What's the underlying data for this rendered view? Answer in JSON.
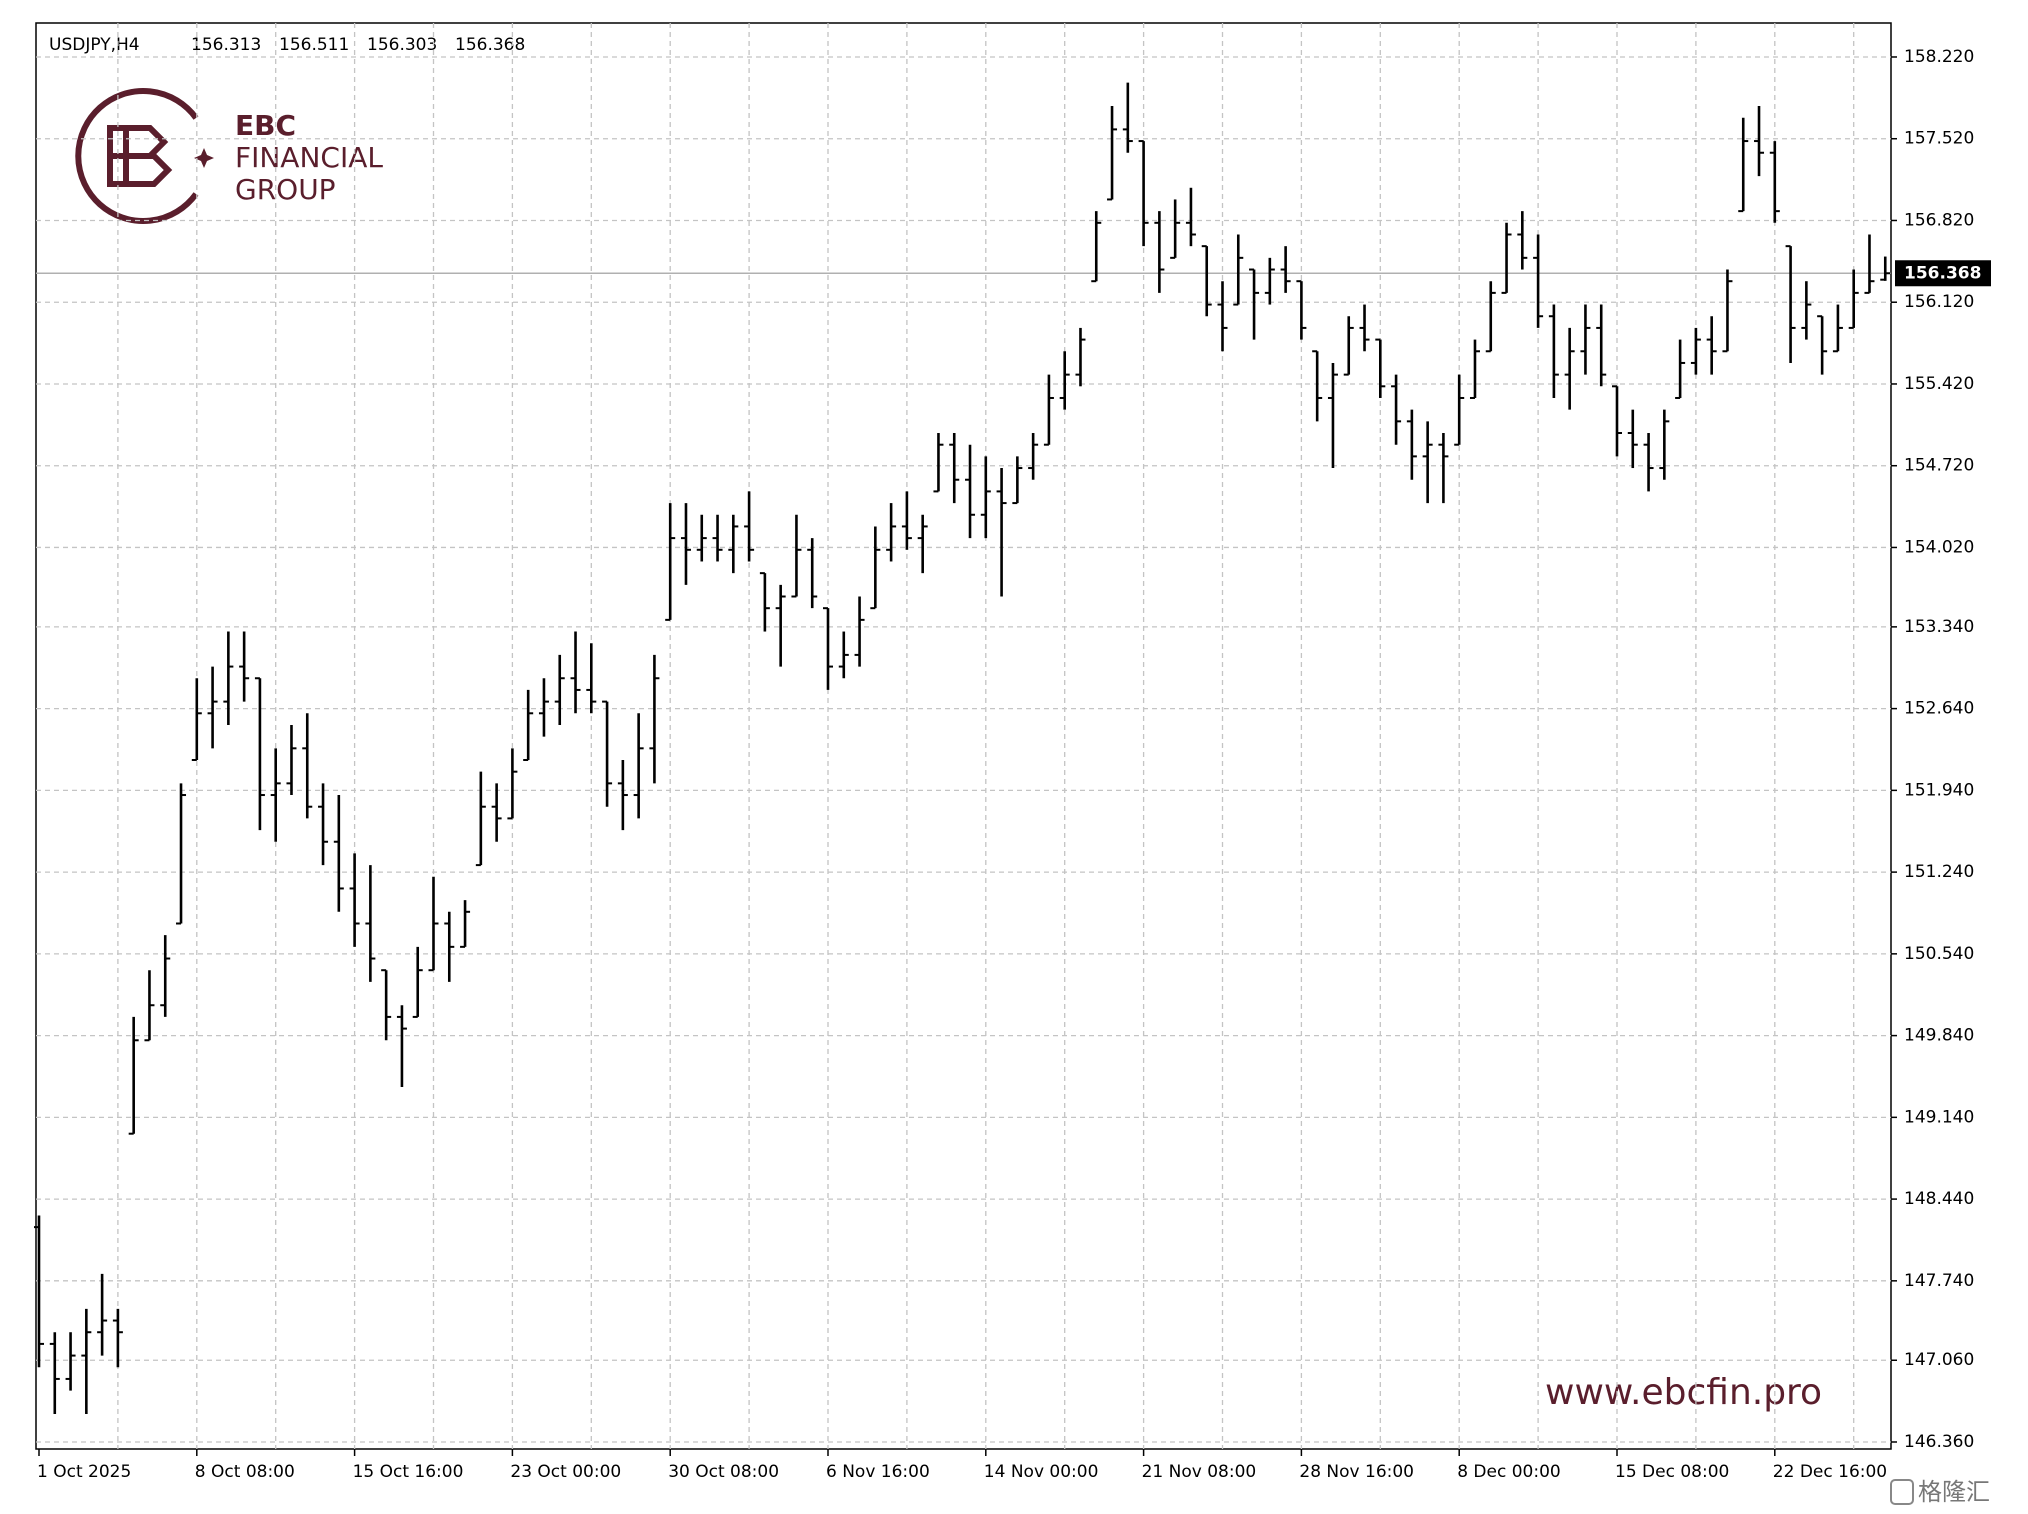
{
  "chart_data": {
    "type": "ohlc",
    "symbol": "USDJPY,H4",
    "quote": [
      156.313,
      156.511,
      156.303,
      156.368
    ],
    "categories": [
      "1 Oct 2025",
      null,
      null,
      null,
      null,
      null,
      null,
      null,
      null,
      null,
      "8 Oct 08:00",
      null,
      null,
      null,
      null,
      null,
      null,
      null,
      null,
      null,
      "15 Oct 16:00",
      null,
      null,
      null,
      null,
      null,
      null,
      null,
      null,
      null,
      "23 Oct 00:00",
      null,
      null,
      null,
      null,
      null,
      null,
      null,
      null,
      null,
      "30 Oct 08:00",
      null,
      null,
      null,
      null,
      null,
      null,
      null,
      null,
      null,
      "6 Nov 16:00",
      null,
      null,
      null,
      null,
      null,
      null,
      null,
      null,
      null,
      "14 Nov 00:00",
      null,
      null,
      null,
      null,
      null,
      null,
      null,
      null,
      null,
      "21 Nov 08:00",
      null,
      null,
      null,
      null,
      null,
      null,
      null,
      null,
      null,
      "28 Nov 16:00",
      null,
      null,
      null,
      null,
      null,
      null,
      null,
      null,
      null,
      "8 Dec 00:00",
      null,
      null,
      null,
      null,
      null,
      null,
      null,
      null,
      null,
      "15 Dec 08:00",
      null,
      null,
      null,
      null,
      null,
      null,
      null,
      null,
      null,
      "22 Dec 16:00",
      null,
      null,
      null,
      null,
      null,
      null,
      null
    ],
    "open": [
      148.2,
      147.2,
      146.9,
      147.1,
      147.3,
      147.4,
      149.0,
      149.8,
      150.1,
      150.8,
      152.2,
      152.6,
      152.7,
      153.0,
      152.9,
      151.9,
      152.0,
      152.3,
      151.8,
      151.5,
      151.1,
      150.8,
      150.4,
      150.0,
      150.0,
      150.4,
      150.8,
      150.6,
      151.3,
      151.8,
      151.7,
      152.2,
      152.6,
      152.7,
      152.9,
      152.8,
      152.7,
      152.0,
      151.9,
      152.3,
      153.4,
      154.1,
      154.0,
      154.1,
      154.0,
      154.2,
      153.8,
      153.5,
      153.6,
      154.0,
      153.5,
      153.0,
      153.1,
      153.5,
      154.0,
      154.2,
      154.1,
      154.5,
      154.9,
      154.6,
      154.3,
      154.5,
      154.4,
      154.7,
      154.9,
      155.3,
      155.5,
      156.3,
      157.0,
      157.6,
      157.5,
      156.8,
      156.5,
      156.8,
      156.6,
      156.1,
      156.1,
      156.4,
      156.2,
      156.4,
      156.3,
      155.7,
      155.3,
      155.5,
      155.9,
      155.8,
      155.4,
      155.1,
      154.8,
      154.9,
      154.9,
      155.3,
      155.7,
      156.2,
      156.7,
      156.5,
      156.0,
      155.5,
      155.7,
      155.9,
      155.4,
      155.0,
      154.9,
      154.7,
      155.3,
      155.6,
      155.8,
      155.7,
      156.9,
      157.5,
      157.4,
      156.6,
      155.9,
      156.0,
      155.7,
      155.9,
      156.2,
      156.313
    ],
    "high": [
      148.3,
      147.3,
      147.3,
      147.5,
      147.8,
      147.5,
      150.0,
      150.4,
      150.7,
      152.0,
      152.9,
      153.0,
      153.3,
      153.3,
      152.9,
      152.3,
      152.5,
      152.6,
      152.0,
      151.9,
      151.4,
      151.3,
      150.4,
      150.1,
      150.6,
      151.2,
      150.9,
      151.0,
      152.1,
      152.0,
      152.3,
      152.8,
      152.9,
      153.1,
      153.3,
      153.2,
      152.7,
      152.2,
      152.6,
      153.1,
      154.4,
      154.4,
      154.3,
      154.3,
      154.3,
      154.5,
      153.8,
      153.7,
      154.3,
      154.1,
      153.5,
      153.3,
      153.6,
      154.2,
      154.4,
      154.5,
      154.3,
      155.0,
      155.0,
      154.9,
      154.8,
      154.7,
      154.8,
      155.0,
      155.5,
      155.7,
      155.9,
      156.9,
      157.8,
      158.0,
      157.5,
      156.9,
      157.0,
      157.1,
      156.6,
      156.3,
      156.7,
      156.4,
      156.5,
      156.6,
      156.3,
      155.7,
      155.6,
      156.0,
      156.1,
      155.8,
      155.5,
      155.2,
      155.1,
      155.0,
      155.5,
      155.8,
      156.3,
      156.8,
      156.9,
      156.7,
      156.1,
      155.9,
      156.1,
      156.1,
      155.4,
      155.2,
      155.0,
      155.2,
      155.8,
      155.9,
      156.0,
      156.4,
      157.7,
      157.8,
      157.5,
      156.6,
      156.3,
      156.0,
      156.1,
      156.4,
      156.7,
      156.511
    ],
    "low": [
      147.0,
      146.6,
      146.8,
      146.6,
      147.1,
      147.0,
      149.0,
      149.8,
      150.0,
      150.8,
      152.2,
      152.3,
      152.5,
      152.7,
      151.6,
      151.5,
      151.9,
      151.7,
      151.3,
      150.9,
      150.6,
      150.3,
      149.8,
      149.4,
      150.0,
      150.4,
      150.3,
      150.6,
      151.3,
      151.5,
      151.7,
      152.2,
      152.4,
      152.5,
      152.6,
      152.6,
      151.8,
      151.6,
      151.7,
      152.0,
      153.4,
      153.7,
      153.9,
      153.9,
      153.8,
      153.9,
      153.3,
      153.0,
      153.6,
      153.5,
      152.8,
      152.9,
      153.0,
      153.5,
      153.9,
      154.0,
      153.8,
      154.5,
      154.4,
      154.1,
      154.1,
      153.6,
      154.4,
      154.6,
      154.9,
      155.2,
      155.4,
      156.3,
      157.0,
      157.4,
      156.6,
      156.2,
      156.5,
      156.6,
      156.0,
      155.7,
      156.1,
      155.8,
      156.1,
      156.2,
      155.8,
      155.1,
      154.7,
      155.5,
      155.7,
      155.3,
      154.9,
      154.6,
      154.4,
      154.4,
      154.9,
      155.3,
      155.7,
      156.2,
      156.4,
      155.9,
      155.3,
      155.2,
      155.5,
      155.4,
      154.8,
      154.7,
      154.5,
      154.6,
      155.3,
      155.5,
      155.5,
      155.7,
      156.9,
      157.2,
      156.8,
      155.6,
      155.8,
      155.5,
      155.7,
      155.9,
      156.2,
      156.303
    ],
    "close": [
      147.2,
      146.9,
      147.1,
      147.3,
      147.4,
      147.3,
      149.8,
      150.1,
      150.5,
      151.9,
      152.6,
      152.7,
      153.0,
      152.9,
      151.9,
      152.0,
      152.3,
      151.8,
      151.5,
      151.1,
      150.8,
      150.5,
      150.0,
      149.9,
      150.4,
      150.8,
      150.6,
      150.9,
      151.8,
      151.7,
      152.1,
      152.6,
      152.7,
      152.9,
      152.8,
      152.7,
      152.0,
      151.9,
      152.3,
      152.9,
      154.1,
      154.0,
      154.1,
      154.0,
      154.2,
      154.0,
      153.5,
      153.6,
      154.0,
      153.6,
      153.0,
      153.1,
      153.4,
      154.0,
      154.2,
      154.1,
      154.2,
      154.9,
      154.6,
      154.3,
      154.5,
      154.4,
      154.7,
      154.9,
      155.3,
      155.5,
      155.8,
      156.8,
      157.6,
      157.5,
      156.8,
      156.4,
      156.8,
      156.7,
      156.1,
      155.9,
      156.5,
      156.2,
      156.4,
      156.3,
      155.9,
      155.3,
      155.5,
      155.9,
      155.8,
      155.4,
      155.1,
      154.8,
      154.9,
      154.8,
      155.3,
      155.7,
      156.2,
      156.7,
      156.5,
      156.0,
      155.5,
      155.7,
      155.9,
      155.5,
      155.0,
      154.9,
      154.7,
      155.1,
      155.6,
      155.8,
      155.7,
      156.3,
      157.5,
      157.4,
      156.9,
      155.9,
      156.1,
      155.7,
      155.9,
      156.2,
      156.3,
      156.368
    ],
    "color": "#000000",
    "ylim": [
      146.3,
      158.511
    ],
    "yticks": [
      {
        "value": 158.22,
        "label": "158.220"
      },
      {
        "value": 157.52,
        "label": "157.520"
      },
      {
        "value": 156.82,
        "label": "156.820"
      },
      {
        "value": 156.12,
        "label": "156.120"
      },
      {
        "value": 155.42,
        "label": "155.420"
      },
      {
        "value": 154.72,
        "label": "154.720"
      },
      {
        "value": 154.02,
        "label": "154.020"
      },
      {
        "value": 153.34,
        "label": "153.340"
      },
      {
        "value": 152.64,
        "label": "152.640"
      },
      {
        "value": 151.94,
        "label": "151.940"
      },
      {
        "value": 151.24,
        "label": "151.240"
      },
      {
        "value": 150.54,
        "label": "150.540"
      },
      {
        "value": 149.84,
        "label": "149.840"
      },
      {
        "value": 149.14,
        "label": "149.140"
      },
      {
        "value": 148.44,
        "label": "148.440"
      },
      {
        "value": 147.74,
        "label": "147.740"
      },
      {
        "value": 147.06,
        "label": "147.060"
      },
      {
        "value": 146.36,
        "label": "146.360"
      }
    ],
    "grid": true,
    "current_price": 156.368
  },
  "brand": {
    "name": "EBC",
    "line1": "FINANCIAL",
    "line2": "GROUP",
    "url": "www.ebcfin.pro"
  },
  "source": "格隆汇"
}
